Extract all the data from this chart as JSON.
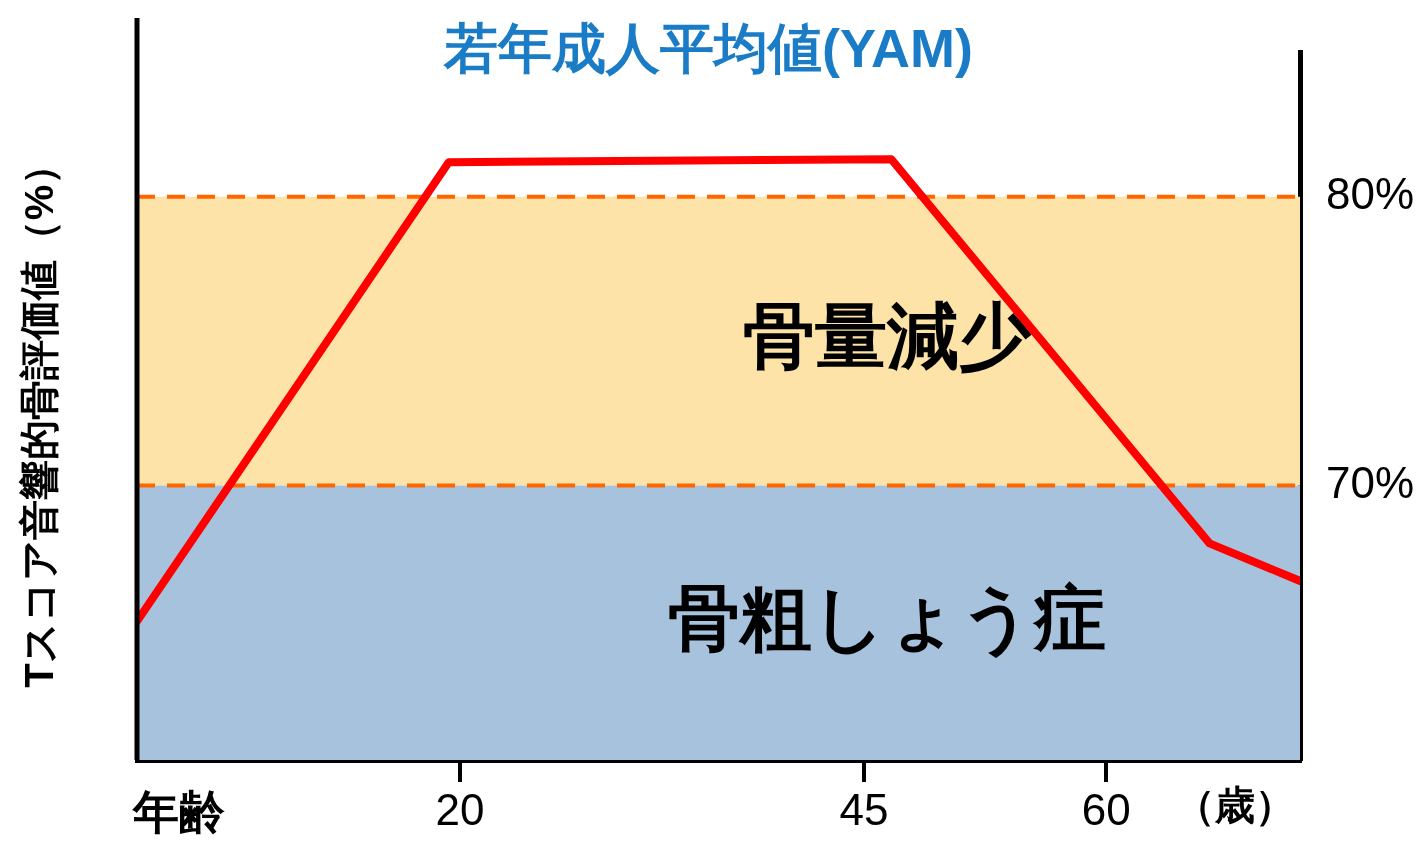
{
  "chart_data": {
    "type": "line",
    "title": "若年成人平均値(YAM)",
    "xlabel": "年齢",
    "ylabel": "Tスコア音響的骨評価値（%）",
    "annotations": [
      "（歳）"
    ],
    "x": [
      0,
      19.3,
      46.7,
      66.4,
      72
    ],
    "series": [
      {
        "color": "#ff0000",
        "values": [
          65.3,
          81.2,
          81.3,
          68.0,
          66.7
        ]
      }
    ],
    "xlim": [
      0,
      72
    ],
    "xticks": [
      20,
      45,
      60
    ],
    "ylim": [
      60.5,
      85
    ],
    "yticks": [
      {
        "value": 70,
        "label": "70%"
      },
      {
        "value": 80,
        "label": "80%"
      }
    ],
    "ref_lines": [
      {
        "axis": "y",
        "value": 80,
        "color": "#ff6600",
        "line_style": "dashed"
      },
      {
        "axis": "y",
        "value": 70,
        "color": "#ff6600",
        "line_style": "dashed"
      }
    ],
    "bands": [
      {
        "axis": "y",
        "from": 70,
        "to": 80,
        "label": "骨量減少",
        "color": "#fde3a8"
      },
      {
        "axis": "y",
        "from": 60.5,
        "to": 70,
        "label": "骨粗しょう症",
        "color": "#a7c2dd"
      }
    ],
    "grid": false,
    "legend": false,
    "marker": "none",
    "line_style": "solid"
  }
}
